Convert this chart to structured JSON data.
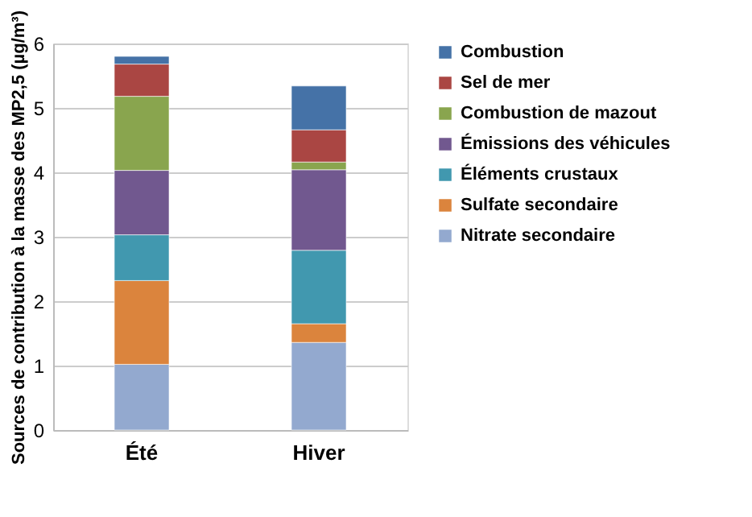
{
  "chart_data": {
    "type": "bar",
    "stacked": true,
    "ylabel": "Sources de contribution à la masse des MP2,5 (µg/m³)",
    "categories": [
      "Été",
      "Hiver"
    ],
    "series": [
      {
        "name": "Nitrate secondaire",
        "color": "#93a9cf",
        "values": [
          1.02,
          1.36
        ]
      },
      {
        "name": "Sulfate secondaire",
        "color": "#db843d",
        "values": [
          1.3,
          0.29
        ]
      },
      {
        "name": "Éléments crustaux",
        "color": "#4198af",
        "values": [
          0.71,
          1.14
        ]
      },
      {
        "name": "Émissions des véhicules",
        "color": "#71588f",
        "values": [
          1.0,
          1.25
        ]
      },
      {
        "name": "Combustion de mazout",
        "color": "#89a54e",
        "values": [
          1.15,
          0.12
        ]
      },
      {
        "name": "Sel de mer",
        "color": "#aa4643",
        "values": [
          0.5,
          0.5
        ]
      },
      {
        "name": "Combustion",
        "color": "#4572a7",
        "values": [
          0.12,
          0.68
        ]
      }
    ],
    "ylim": [
      0,
      6
    ],
    "yticks": [
      0,
      1,
      2,
      3,
      4,
      5,
      6
    ],
    "grid": "y",
    "legend": "right"
  }
}
